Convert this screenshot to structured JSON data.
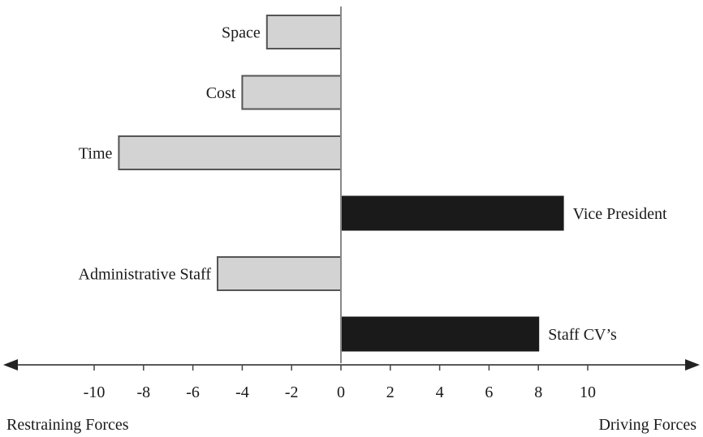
{
  "chart_data": {
    "type": "bar",
    "orientation": "horizontal",
    "categories": [
      "Space",
      "Cost",
      "Time",
      "Vice President",
      "Administrative Staff",
      "Staff CV’s"
    ],
    "values": [
      -3,
      -4,
      -9,
      9,
      -5,
      8
    ],
    "xlim": [
      -10,
      10
    ],
    "x_ticks": [
      -10,
      -8,
      -6,
      -4,
      -2,
      0,
      2,
      4,
      6,
      8,
      10
    ],
    "left_label": "Restraining Forces",
    "right_label": "Driving Forces",
    "colors": {
      "negative": "#d3d3d3",
      "positive": "#1a1a1a",
      "outline": "#555555"
    }
  }
}
